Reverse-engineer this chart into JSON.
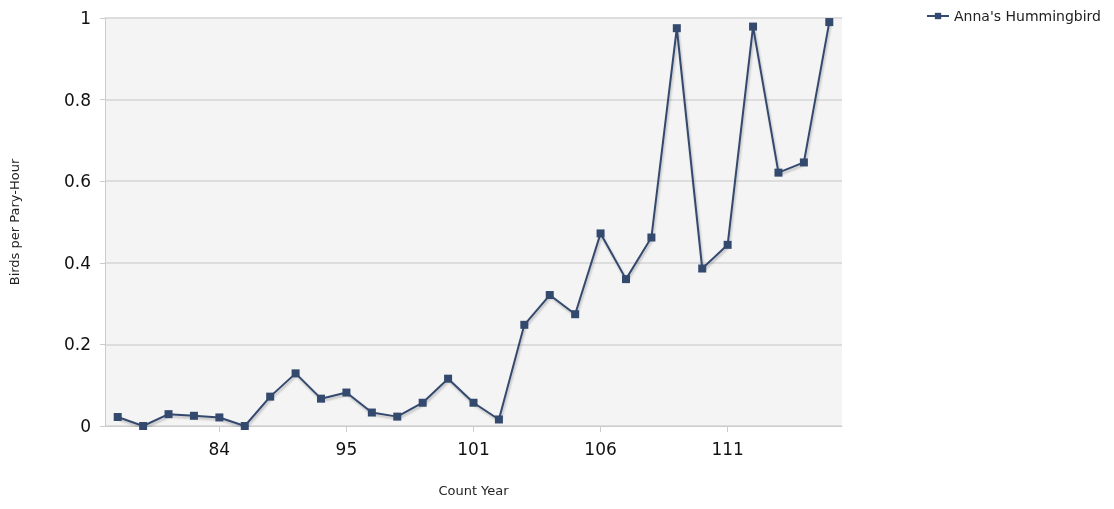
{
  "chart_data": {
    "type": "line",
    "xlabel": "Count Year",
    "ylabel": "Birds per Pary-Hour",
    "categories": [
      null,
      null,
      null,
      null,
      "84",
      null,
      null,
      null,
      null,
      "95",
      null,
      null,
      null,
      null,
      "101",
      null,
      null,
      null,
      null,
      "106",
      null,
      null,
      null,
      null,
      "111",
      null,
      null,
      null,
      null
    ],
    "series": [
      {
        "name": "Anna's Hummingbird",
        "color": "#34496e",
        "values": [
          0.022,
          0,
          0.029,
          0.025,
          0.021,
          0,
          0.072,
          0.129,
          0.067,
          0.082,
          0.033,
          0.023,
          0.057,
          0.116,
          0.057,
          0.016,
          0.248,
          0.321,
          0.274,
          0.472,
          0.36,
          0.462,
          0.975,
          0.386,
          0.444,
          0.979,
          0.621,
          0.646,
          0.99
        ]
      }
    ],
    "ylim": [
      0,
      1
    ],
    "yticks": [
      0,
      0.2,
      0.4,
      0.6,
      0.8,
      1
    ],
    "grid": "y",
    "legend": "top right",
    "marker": "square",
    "line_style": "solid"
  }
}
